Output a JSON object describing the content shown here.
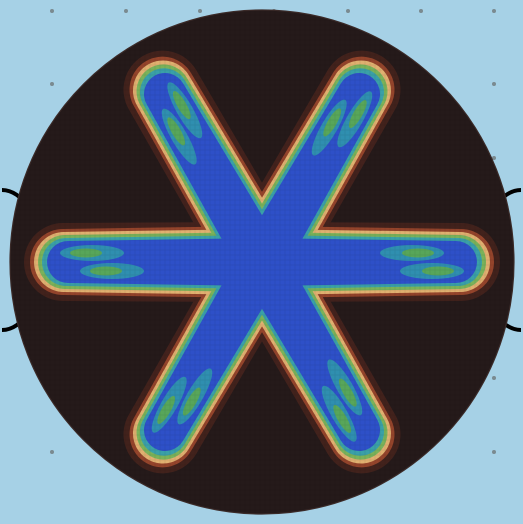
{
  "view": {
    "description_label": "",
    "colors": {
      "background": "#a6d1e6",
      "disk_dark": "#251a1a",
      "halo_outer": "#5c2a20",
      "halo_mid": "#b05030",
      "halo_inner": "#e0b070",
      "rim_green": "#7ab25a",
      "rim_teal": "#3aa0a8",
      "fill_blue": "#2e50c8",
      "pocket_teal": "#2f8fb0",
      "pocket_green": "#58a65a",
      "dot": "#7a8a90",
      "outline": "#000000"
    },
    "pattern": {
      "arms": 6,
      "arm_angles_deg": [
        0,
        60,
        120,
        180,
        240,
        300
      ]
    },
    "dot_grid": {
      "columns": 7,
      "rows": 7
    }
  }
}
